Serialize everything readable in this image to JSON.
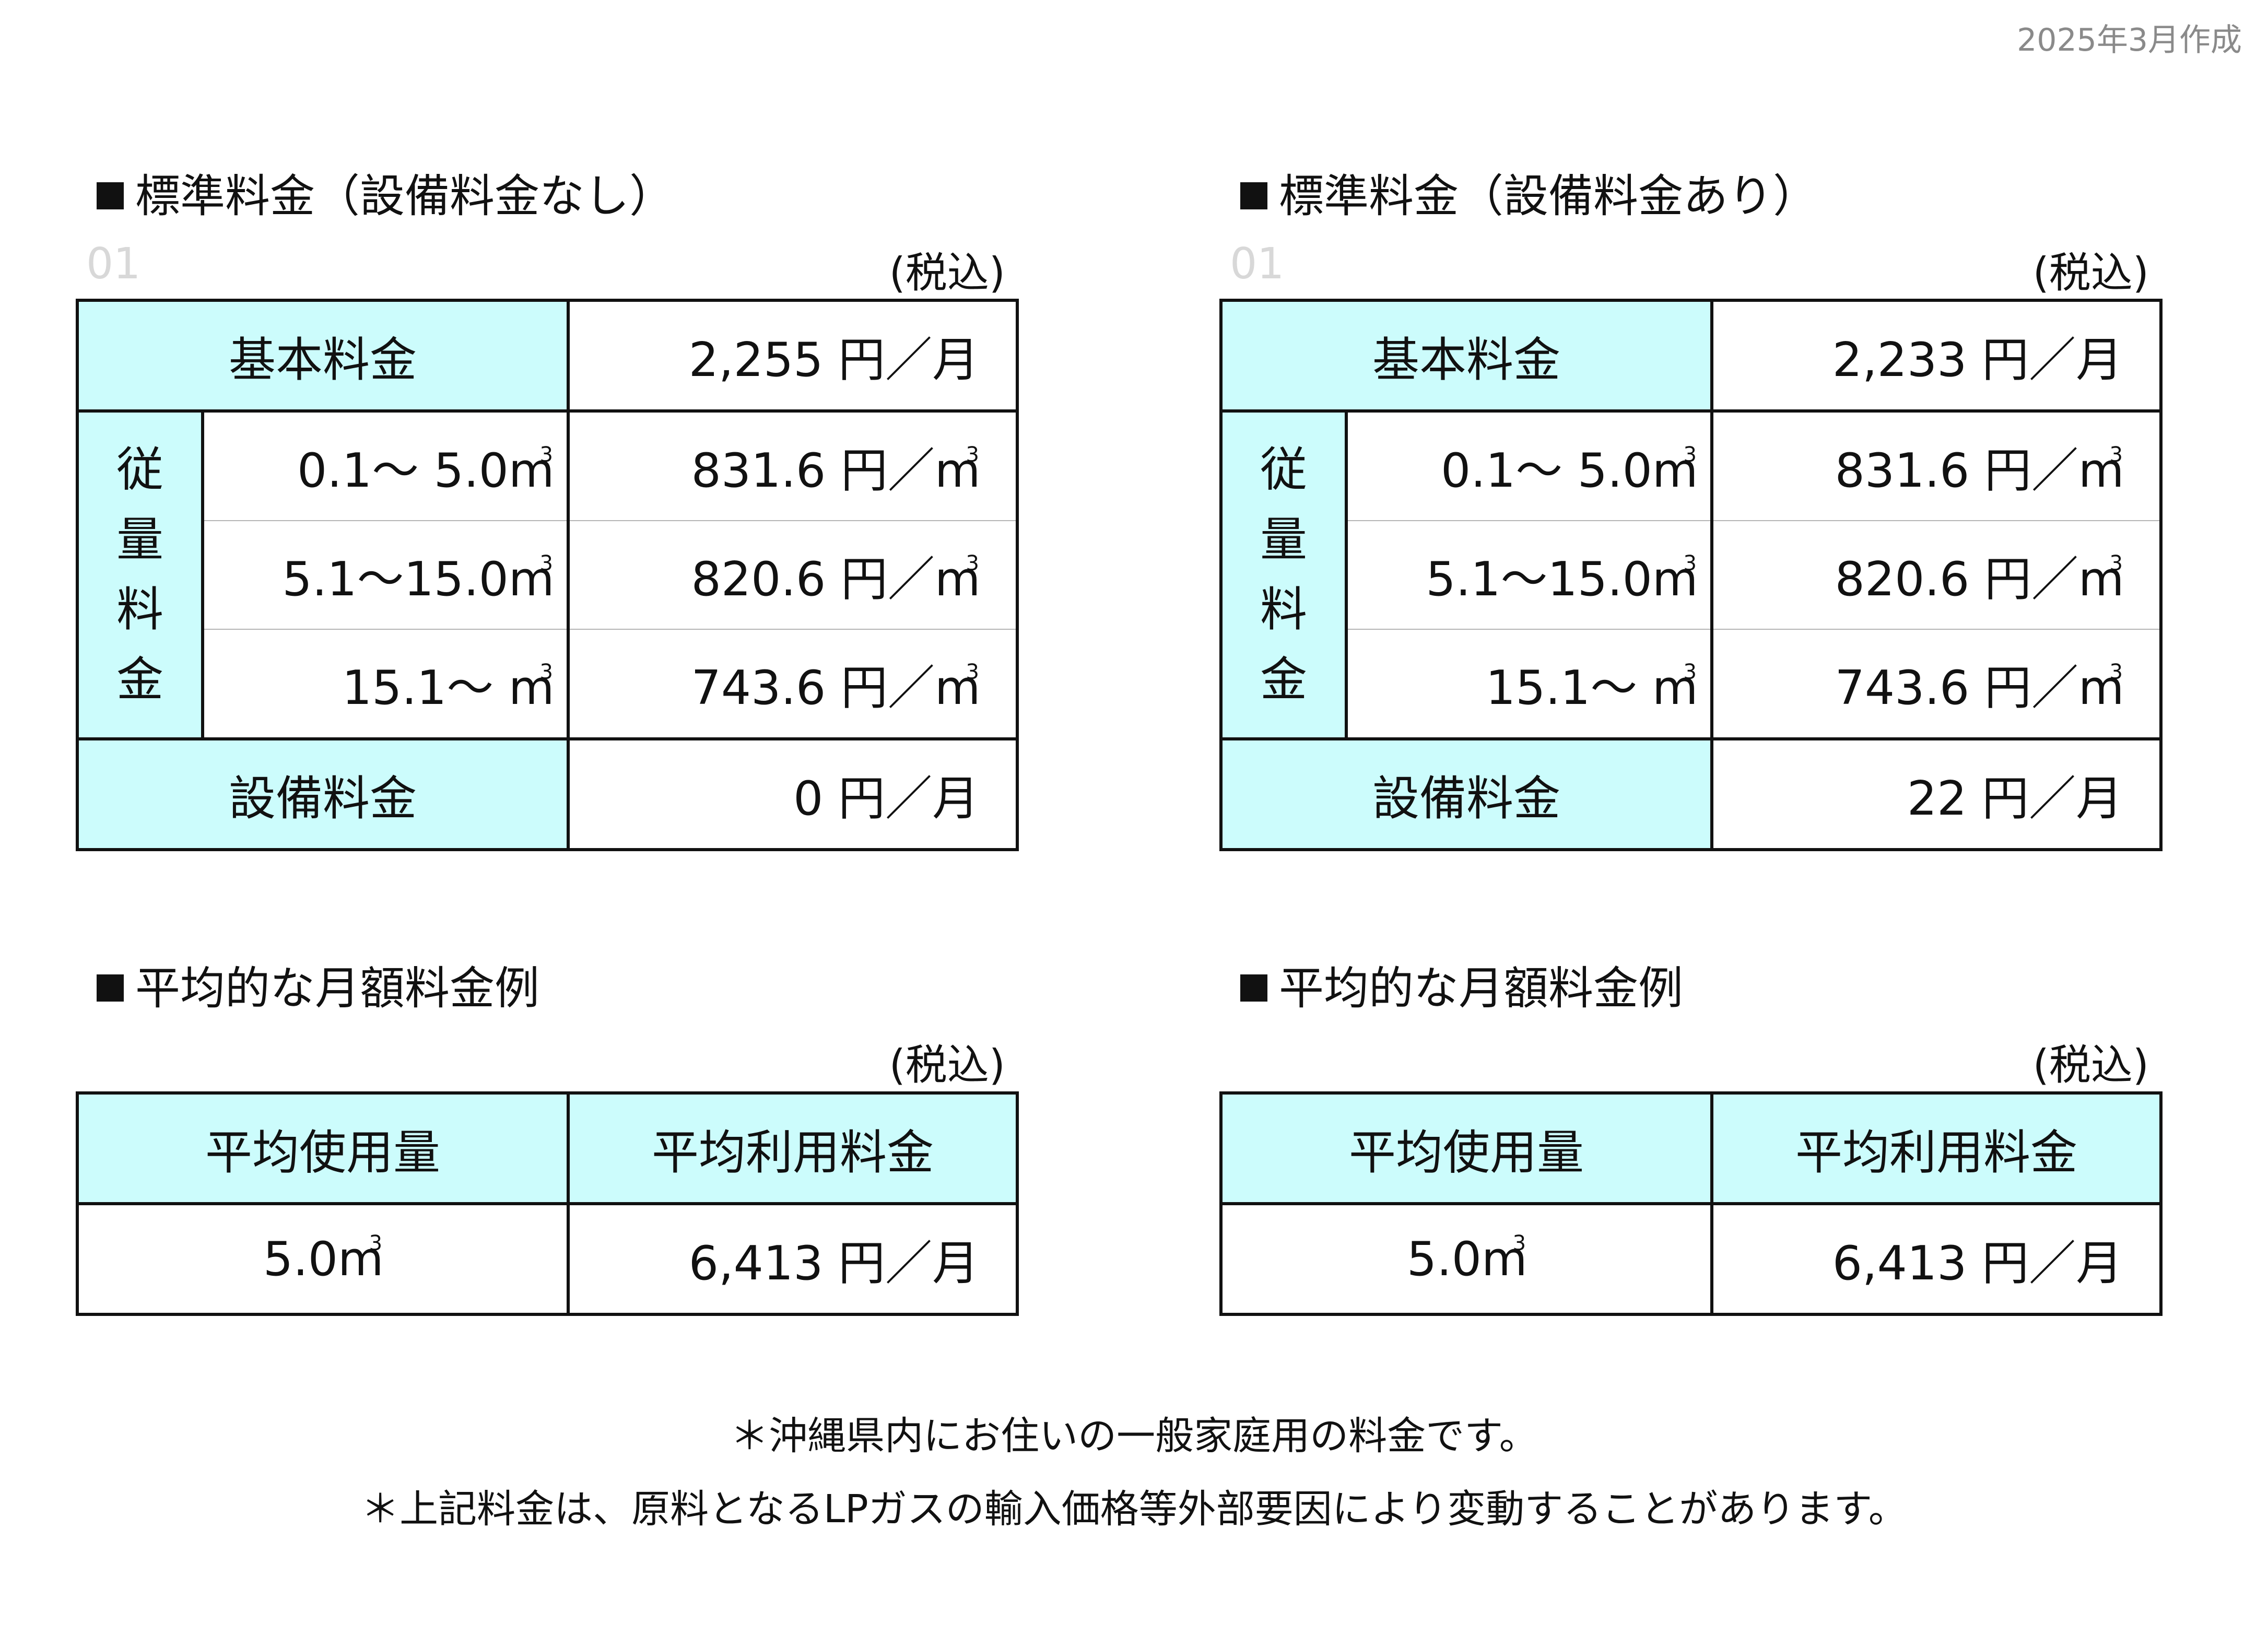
{
  "date_label": "2025年3月作成",
  "panels": [
    {
      "title": "標準料金（設備料金なし）",
      "faint": "01",
      "tax": "(税込)",
      "basic_label": "基本料金",
      "basic_value": "2,255 円／月",
      "usage_label": [
        "従",
        "量",
        "料",
        "金"
      ],
      "ranges": [
        {
          "range": "0.1～  5.0m",
          "price": "831.6 円／m"
        },
        {
          "range": "5.1～15.0m",
          "price": "820.6 円／m"
        },
        {
          "range": "15.1～      m",
          "price": "743.6 円／m"
        }
      ],
      "equip_label": "設備料金",
      "equip_value": "0 円／月",
      "avg_title": "平均的な月額料金例",
      "avg_tax": "(税込)",
      "avg_header_use": "平均使用量",
      "avg_header_fee": "平均利用料金",
      "avg_use": "5.0m",
      "avg_fee": "6,413 円／月"
    },
    {
      "title": "標準料金（設備料金あり）",
      "faint": "01",
      "tax": "(税込)",
      "basic_label": "基本料金",
      "basic_value": "2,233 円／月",
      "usage_label": [
        "従",
        "量",
        "料",
        "金"
      ],
      "ranges": [
        {
          "range": "0.1～  5.0m",
          "price": "831.6 円／m"
        },
        {
          "range": "5.1～15.0m",
          "price": "820.6 円／m"
        },
        {
          "range": "15.1～      m",
          "price": "743.6 円／m"
        }
      ],
      "equip_label": "設備料金",
      "equip_value": "22 円／月",
      "avg_title": "平均的な月額料金例",
      "avg_tax": "(税込)",
      "avg_header_use": "平均使用量",
      "avg_header_fee": "平均利用料金",
      "avg_use": "5.0m",
      "avg_fee": "6,413 円／月"
    }
  ],
  "cubic_sup": "3",
  "notes": [
    "＊沖縄県内にお住いの一般家庭用の料金です。",
    "＊上記料金は、原料となるLPガスの輸入価格等外部要因により変動することがあります。"
  ]
}
